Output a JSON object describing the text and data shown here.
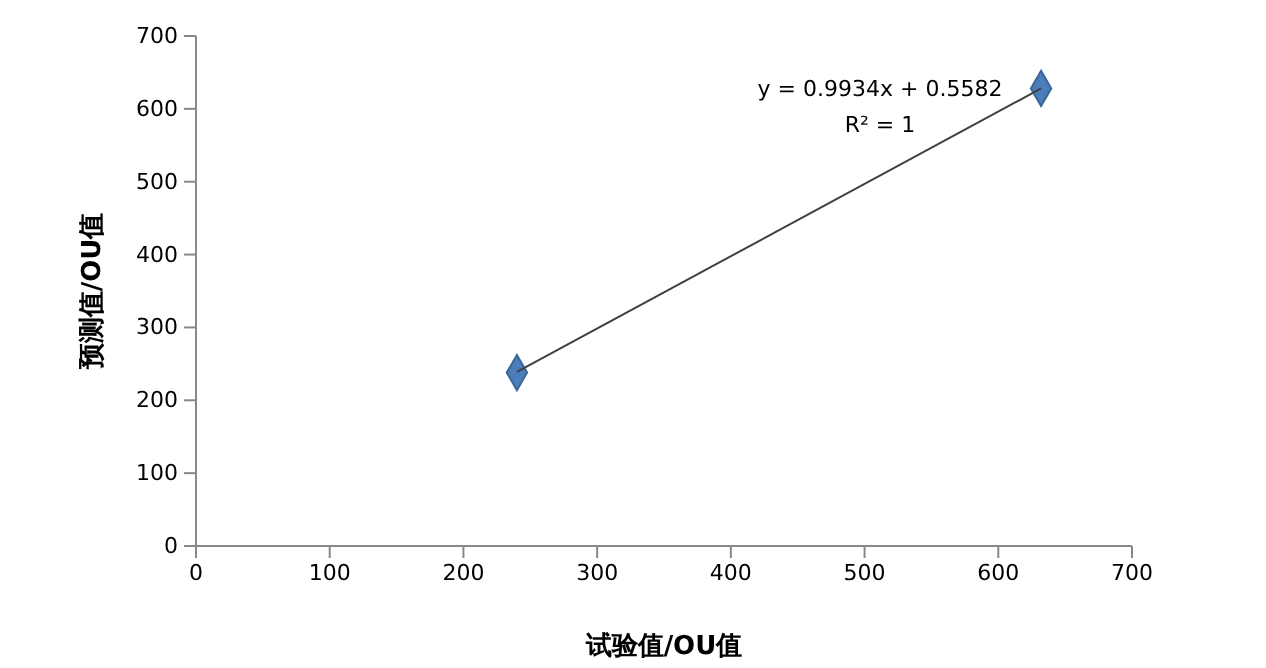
{
  "chart_data": {
    "type": "scatter",
    "xlabel": "试验值/OU值",
    "ylabel": "预测值/OU值",
    "xlim": [
      0,
      700
    ],
    "xticks": [
      0,
      100,
      200,
      300,
      400,
      500,
      600,
      700
    ],
    "ylim": [
      0,
      700
    ],
    "yticks": [
      0,
      100,
      200,
      300,
      400,
      500,
      600,
      700
    ],
    "grid": false,
    "marker": "diamond",
    "x": [
      240,
      632
    ],
    "series": [
      {
        "color": "#4a7ebb",
        "values": [
          238,
          628
        ]
      },
      {
        "type": "line",
        "color": "#404040",
        "line_style": "solid",
        "marker": "none",
        "values": [
          239,
          628
        ]
      }
    ],
    "annotations": [
      "y = 0.9934x + 0.5582",
      "R² = 1"
    ]
  }
}
